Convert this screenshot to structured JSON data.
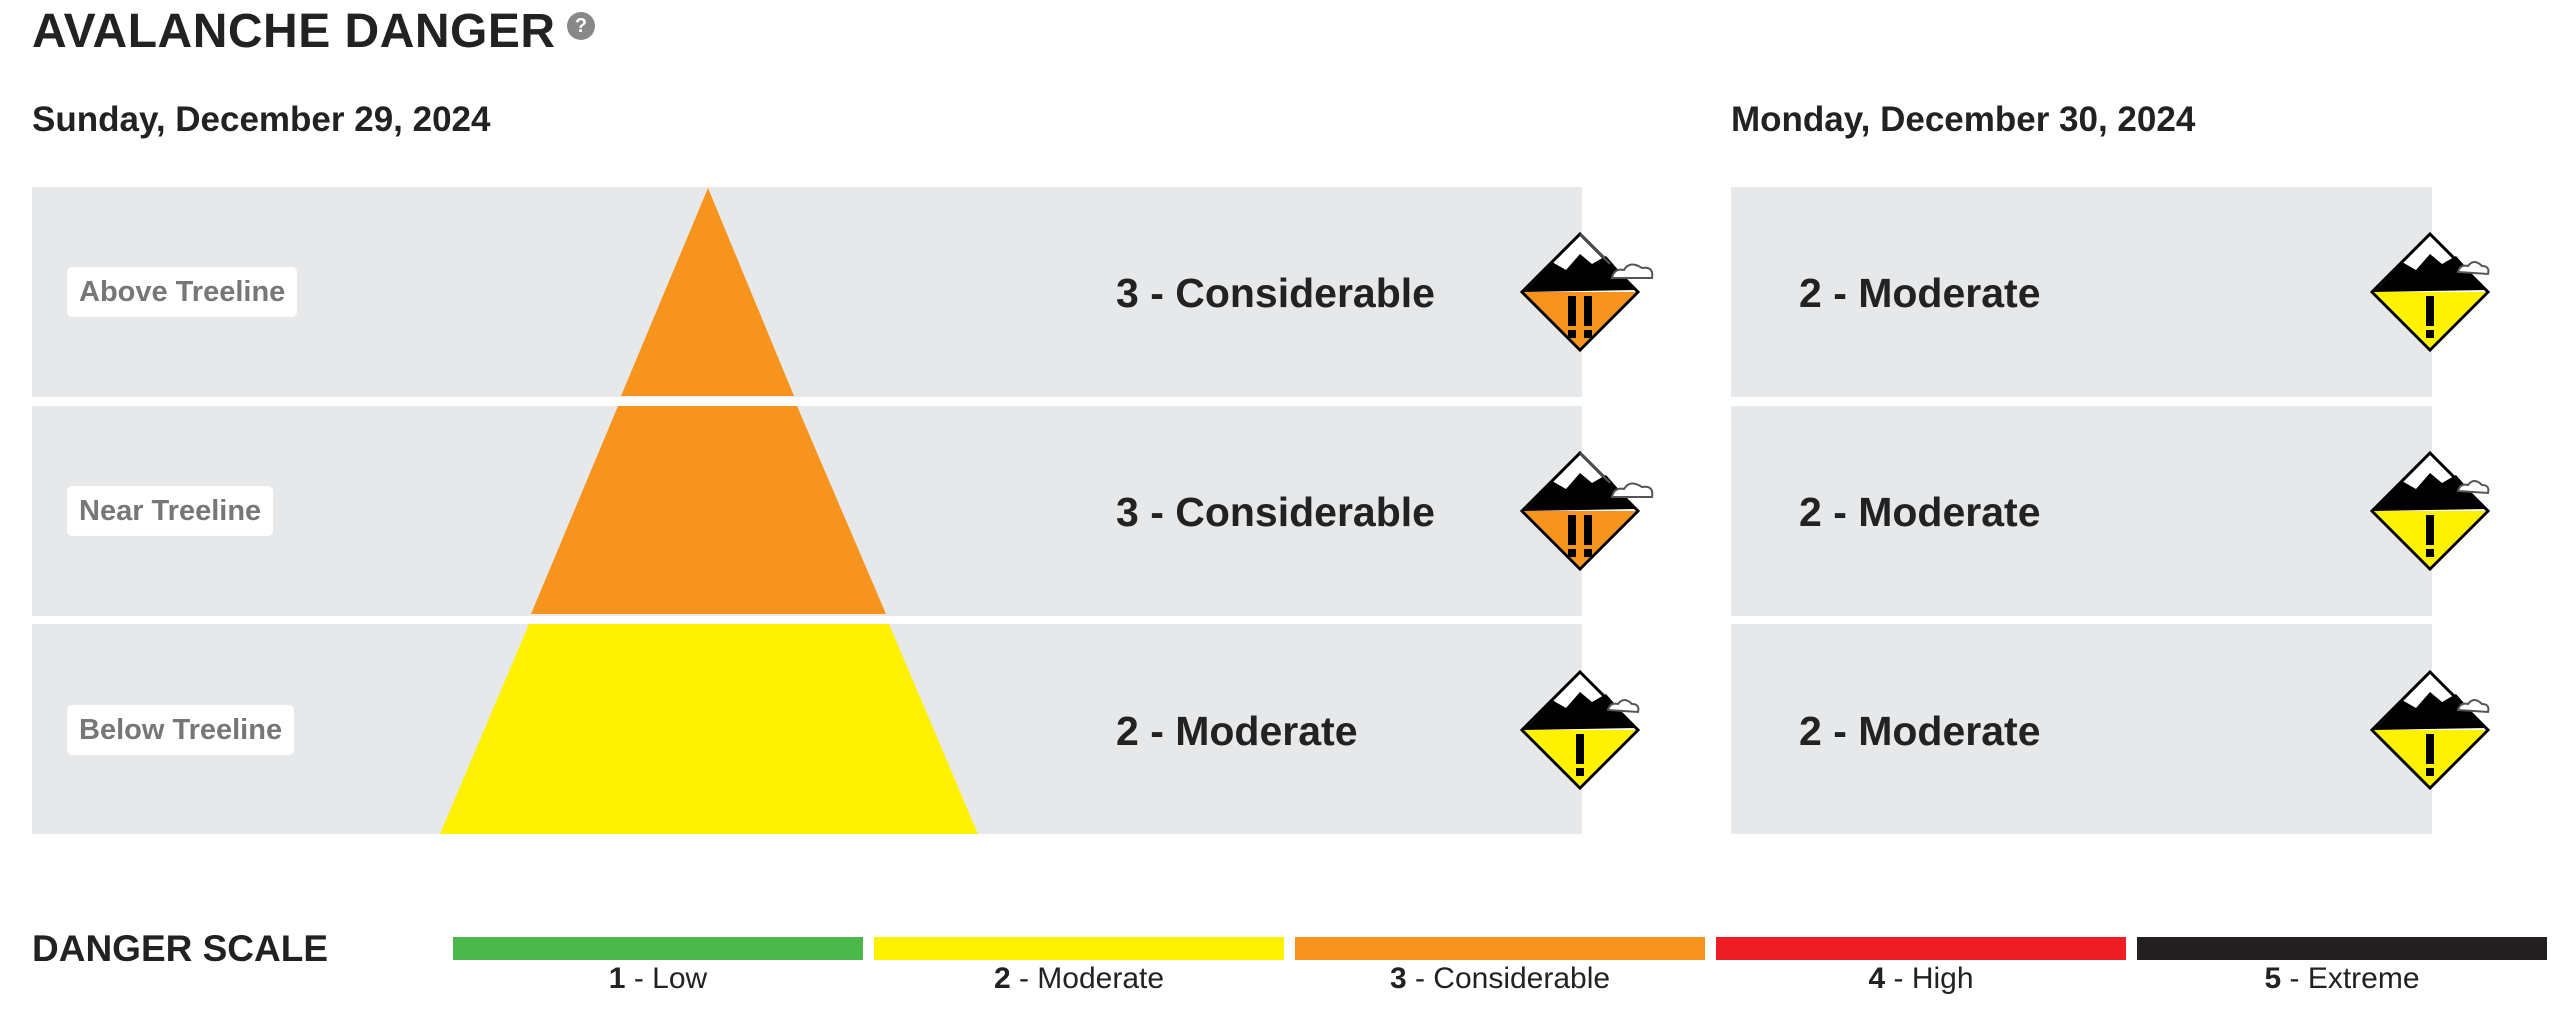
{
  "header": {
    "title": "AVALANCHE DANGER",
    "help_icon": "question-circle-icon"
  },
  "colors": {
    "band": "#e6e8ea",
    "level1": "#4cb84c",
    "level2": "#fff200",
    "level3": "#f7941d",
    "level4": "#ee1c25",
    "level5": "#231f20"
  },
  "days": [
    {
      "date": "Sunday, December 29, 2024",
      "elevations": [
        {
          "label": "Above Treeline",
          "rating": "3 - Considerable",
          "level": 3
        },
        {
          "label": "Near Treeline",
          "rating": "3 - Considerable",
          "level": 3
        },
        {
          "label": "Below Treeline",
          "rating": "2 - Moderate",
          "level": 2
        }
      ]
    },
    {
      "date": "Monday, December 30, 2024",
      "elevations": [
        {
          "rating": "2 - Moderate",
          "level": 2
        },
        {
          "rating": "2 - Moderate",
          "level": 2
        },
        {
          "rating": "2 - Moderate",
          "level": 2
        }
      ]
    }
  ],
  "danger_scale": {
    "title": "DANGER SCALE",
    "levels": [
      {
        "number": "1",
        "name": " - Low",
        "color": "#4cb84c"
      },
      {
        "number": "2",
        "name": " - Moderate",
        "color": "#fff200"
      },
      {
        "number": "3",
        "name": " - Considerable",
        "color": "#f7941d"
      },
      {
        "number": "4",
        "name": " - High",
        "color": "#ee1c25"
      },
      {
        "number": "5",
        "name": " - Extreme",
        "color": "#231f20"
      }
    ]
  }
}
